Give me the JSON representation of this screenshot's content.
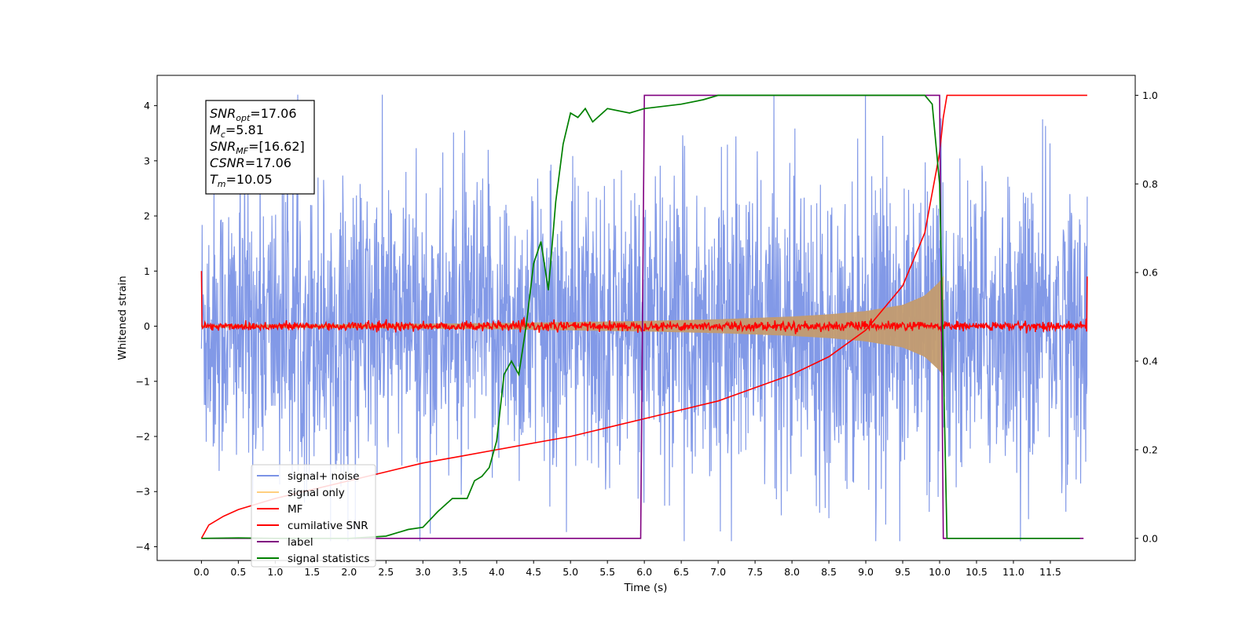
{
  "chart_data": {
    "type": "line",
    "title": "",
    "xlabel": "Time (s)",
    "ylabel": "Whitened strain",
    "y2label": "",
    "xlim": [
      -0.6,
      12.65
    ],
    "ylim": [
      -4.25,
      4.55
    ],
    "y2lim": [
      -0.05,
      1.045
    ],
    "xticks": [
      0.0,
      0.5,
      1.0,
      1.5,
      2.0,
      2.5,
      3.0,
      3.5,
      4.0,
      4.5,
      5.0,
      5.5,
      6.0,
      6.5,
      7.0,
      7.5,
      8.0,
      8.5,
      9.0,
      9.5,
      10.0,
      10.5,
      11.0,
      11.5
    ],
    "xtick_labels": [
      "0.0",
      "0.5",
      "1.0",
      "1.5",
      "2.0",
      "2.5",
      "3.0",
      "3.5",
      "4.0",
      "4.5",
      "5.0",
      "5.5",
      "6.0",
      "6.5",
      "7.0",
      "7.5",
      "8.0",
      "8.5",
      "9.0",
      "9.5",
      "10.0",
      "10.5",
      "11.0",
      "11.5"
    ],
    "yticks": [
      -4,
      -3,
      -2,
      -1,
      0,
      1,
      2,
      3,
      4
    ],
    "ytick_labels": [
      "−4",
      "−3",
      "−2",
      "−1",
      "0",
      "1",
      "2",
      "3",
      "4"
    ],
    "y2ticks": [
      0.0,
      0.2,
      0.4,
      0.6,
      0.8,
      1.0
    ],
    "y2tick_labels": [
      "0.0",
      "0.2",
      "0.4",
      "0.6",
      "0.8",
      "1.0"
    ],
    "grid": false,
    "legend_position": "lower-left",
    "legend": [
      {
        "label": "signal+ noise",
        "color": "#7b93e6"
      },
      {
        "label": "signal only",
        "color": "#ffcf7f"
      },
      {
        "label": "MF",
        "color": "#ff0000"
      },
      {
        "label": "cumilative SNR",
        "color": "#ff0000"
      },
      {
        "label": "label",
        "color": "#800080"
      },
      {
        "label": "signal statistics",
        "color": "#008000"
      }
    ],
    "annotation": [
      {
        "name": "SNR",
        "sub": "opt",
        "value": "=17.06"
      },
      {
        "name": "M",
        "sub": "c",
        "value": "=5.81"
      },
      {
        "name": "SNR",
        "sub": "MF",
        "value": "=[16.62]"
      },
      {
        "name": "CSNR",
        "sub": "",
        "value": "=17.06"
      },
      {
        "name": "T",
        "sub": "m",
        "value": "=10.05"
      }
    ],
    "series": [
      {
        "name": "signal+ noise",
        "axis": "left",
        "color": "#7b93e6",
        "description_band": {
          "x": [
            0.0,
            12.0
          ],
          "typical_amplitude": 2.2,
          "max": 4.2,
          "min": -3.9
        }
      },
      {
        "name": "signal only",
        "axis": "left",
        "color": "#c49c6f",
        "envelope": {
          "x": [
            0.0,
            2.0,
            4.0,
            6.0,
            7.0,
            8.0,
            8.5,
            9.0,
            9.5,
            9.8,
            10.0,
            10.05
          ],
          "amplitude": [
            0.02,
            0.03,
            0.05,
            0.09,
            0.12,
            0.17,
            0.21,
            0.27,
            0.38,
            0.55,
            0.8,
            0.9
          ]
        }
      },
      {
        "name": "MF",
        "axis": "left",
        "color": "#ff0000",
        "typical_amplitude": 0.07,
        "edges": {
          "start": 1.0,
          "end": 0.9
        }
      },
      {
        "name": "cumilative SNR",
        "axis": "right",
        "color": "#ff0000",
        "x": [
          0.0,
          0.1,
          0.3,
          0.5,
          1.0,
          1.5,
          2.0,
          2.5,
          3.0,
          3.5,
          4.0,
          4.5,
          5.0,
          5.5,
          6.0,
          6.5,
          7.0,
          7.5,
          8.0,
          8.5,
          9.0,
          9.5,
          9.8,
          10.0,
          10.05,
          10.1,
          12.0
        ],
        "y": [
          0.0,
          0.03,
          0.05,
          0.065,
          0.09,
          0.11,
          0.13,
          0.15,
          0.17,
          0.185,
          0.2,
          0.215,
          0.23,
          0.25,
          0.27,
          0.29,
          0.31,
          0.34,
          0.37,
          0.41,
          0.47,
          0.57,
          0.69,
          0.87,
          0.95,
          1.0,
          1.0
        ]
      },
      {
        "name": "label",
        "axis": "right",
        "color": "#800080",
        "x": [
          0.0,
          5.95,
          6.0,
          10.0,
          10.05,
          11.95
        ],
        "y": [
          0.0,
          0.0,
          1.0,
          1.0,
          0.0,
          0.0
        ]
      },
      {
        "name": "signal statistics",
        "axis": "right",
        "color": "#008000",
        "x": [
          0.0,
          0.5,
          1.0,
          1.5,
          2.0,
          2.5,
          2.8,
          3.0,
          3.2,
          3.4,
          3.6,
          3.7,
          3.8,
          3.9,
          4.0,
          4.1,
          4.2,
          4.3,
          4.4,
          4.5,
          4.6,
          4.7,
          4.8,
          4.9,
          5.0,
          5.1,
          5.2,
          5.3,
          5.5,
          5.8,
          6.0,
          6.5,
          6.8,
          7.0,
          7.5,
          8.0,
          9.0,
          9.8,
          9.9,
          10.0,
          10.1,
          11.9
        ],
        "y": [
          0.0,
          0.001,
          0.0,
          0.0,
          0.0,
          0.005,
          0.02,
          0.025,
          0.06,
          0.09,
          0.09,
          0.13,
          0.14,
          0.16,
          0.22,
          0.37,
          0.4,
          0.37,
          0.48,
          0.62,
          0.67,
          0.56,
          0.76,
          0.89,
          0.96,
          0.95,
          0.97,
          0.94,
          0.97,
          0.96,
          0.97,
          0.98,
          0.99,
          1.0,
          1.0,
          1.0,
          1.0,
          1.0,
          0.98,
          0.8,
          0.0,
          0.0
        ]
      }
    ]
  }
}
